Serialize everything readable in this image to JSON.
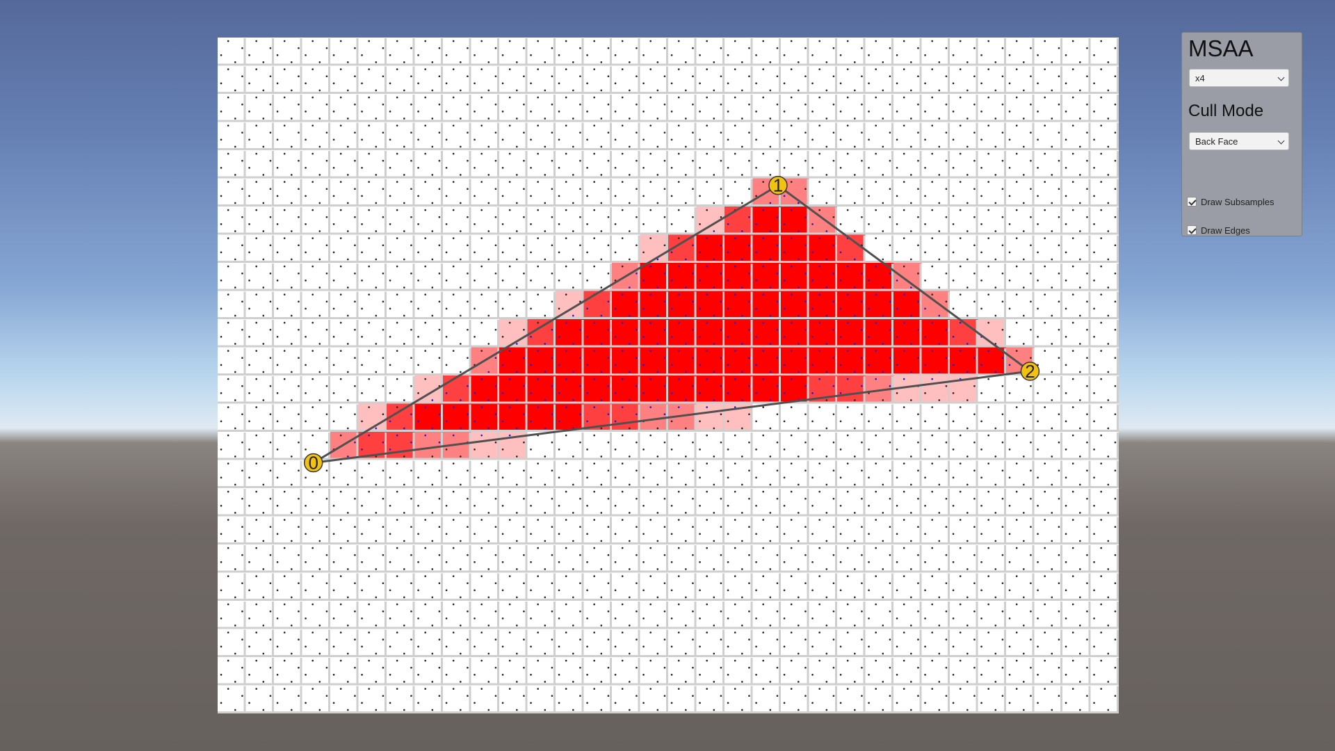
{
  "scene": {
    "grid": {
      "columns": 32,
      "rows": 24
    },
    "covered_pixel_color": "#ff0000",
    "subsample_color": "#1c1cc8",
    "edge_color": "#505050",
    "vertex_color": "#f2c20e",
    "vertices": [
      {
        "label": "0",
        "col": 3.4,
        "row": 15.1
      },
      {
        "label": "1",
        "col": 19.9,
        "row": 5.25
      },
      {
        "label": "2",
        "col": 28.85,
        "row": 11.85
      }
    ]
  },
  "panel": {
    "msaa_title": "MSAA",
    "msaa_value": "x4",
    "cull_title": "Cull Mode",
    "cull_value": "Back Face",
    "draw_subsamples_label": "Draw Subsamples",
    "draw_subsamples_checked": true,
    "draw_edges_label": "Draw Edges",
    "draw_edges_checked": true
  }
}
